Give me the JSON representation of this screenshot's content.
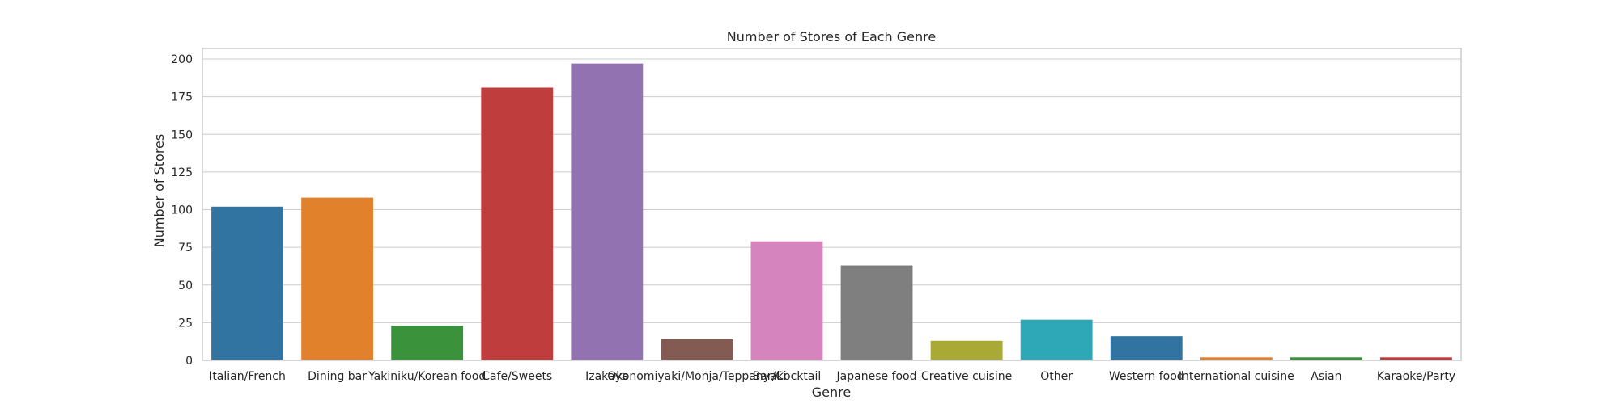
{
  "chart_data": {
    "type": "bar",
    "title": "Number of Stores of Each Genre",
    "xlabel": "Genre",
    "ylabel": "Number of Stores",
    "ylim": [
      0,
      207
    ],
    "yticks": [
      0,
      25,
      50,
      75,
      100,
      125,
      150,
      175,
      200
    ],
    "grid": true,
    "categories": [
      "Italian/French",
      "Dining bar",
      "Yakiniku/Korean food",
      "Cafe/Sweets",
      "Izakaya",
      "Okonomiyaki/Monja/Teppanyaki",
      "Bar/Cocktail",
      "Japanese food",
      "Creative cuisine",
      "Other",
      "Western food",
      "International cuisine",
      "Asian",
      "Karaoke/Party"
    ],
    "values": [
      102,
      108,
      23,
      181,
      197,
      14,
      79,
      63,
      13,
      27,
      16,
      2,
      2,
      2
    ],
    "colors": [
      "#3274a1",
      "#e1812c",
      "#3a923a",
      "#c03d3e",
      "#9372b2",
      "#845b53",
      "#d684bd",
      "#7f7f7f",
      "#a9aa35",
      "#2ea8b6",
      "#3274a1",
      "#e1812c",
      "#3a923a",
      "#c03d3e"
    ]
  }
}
